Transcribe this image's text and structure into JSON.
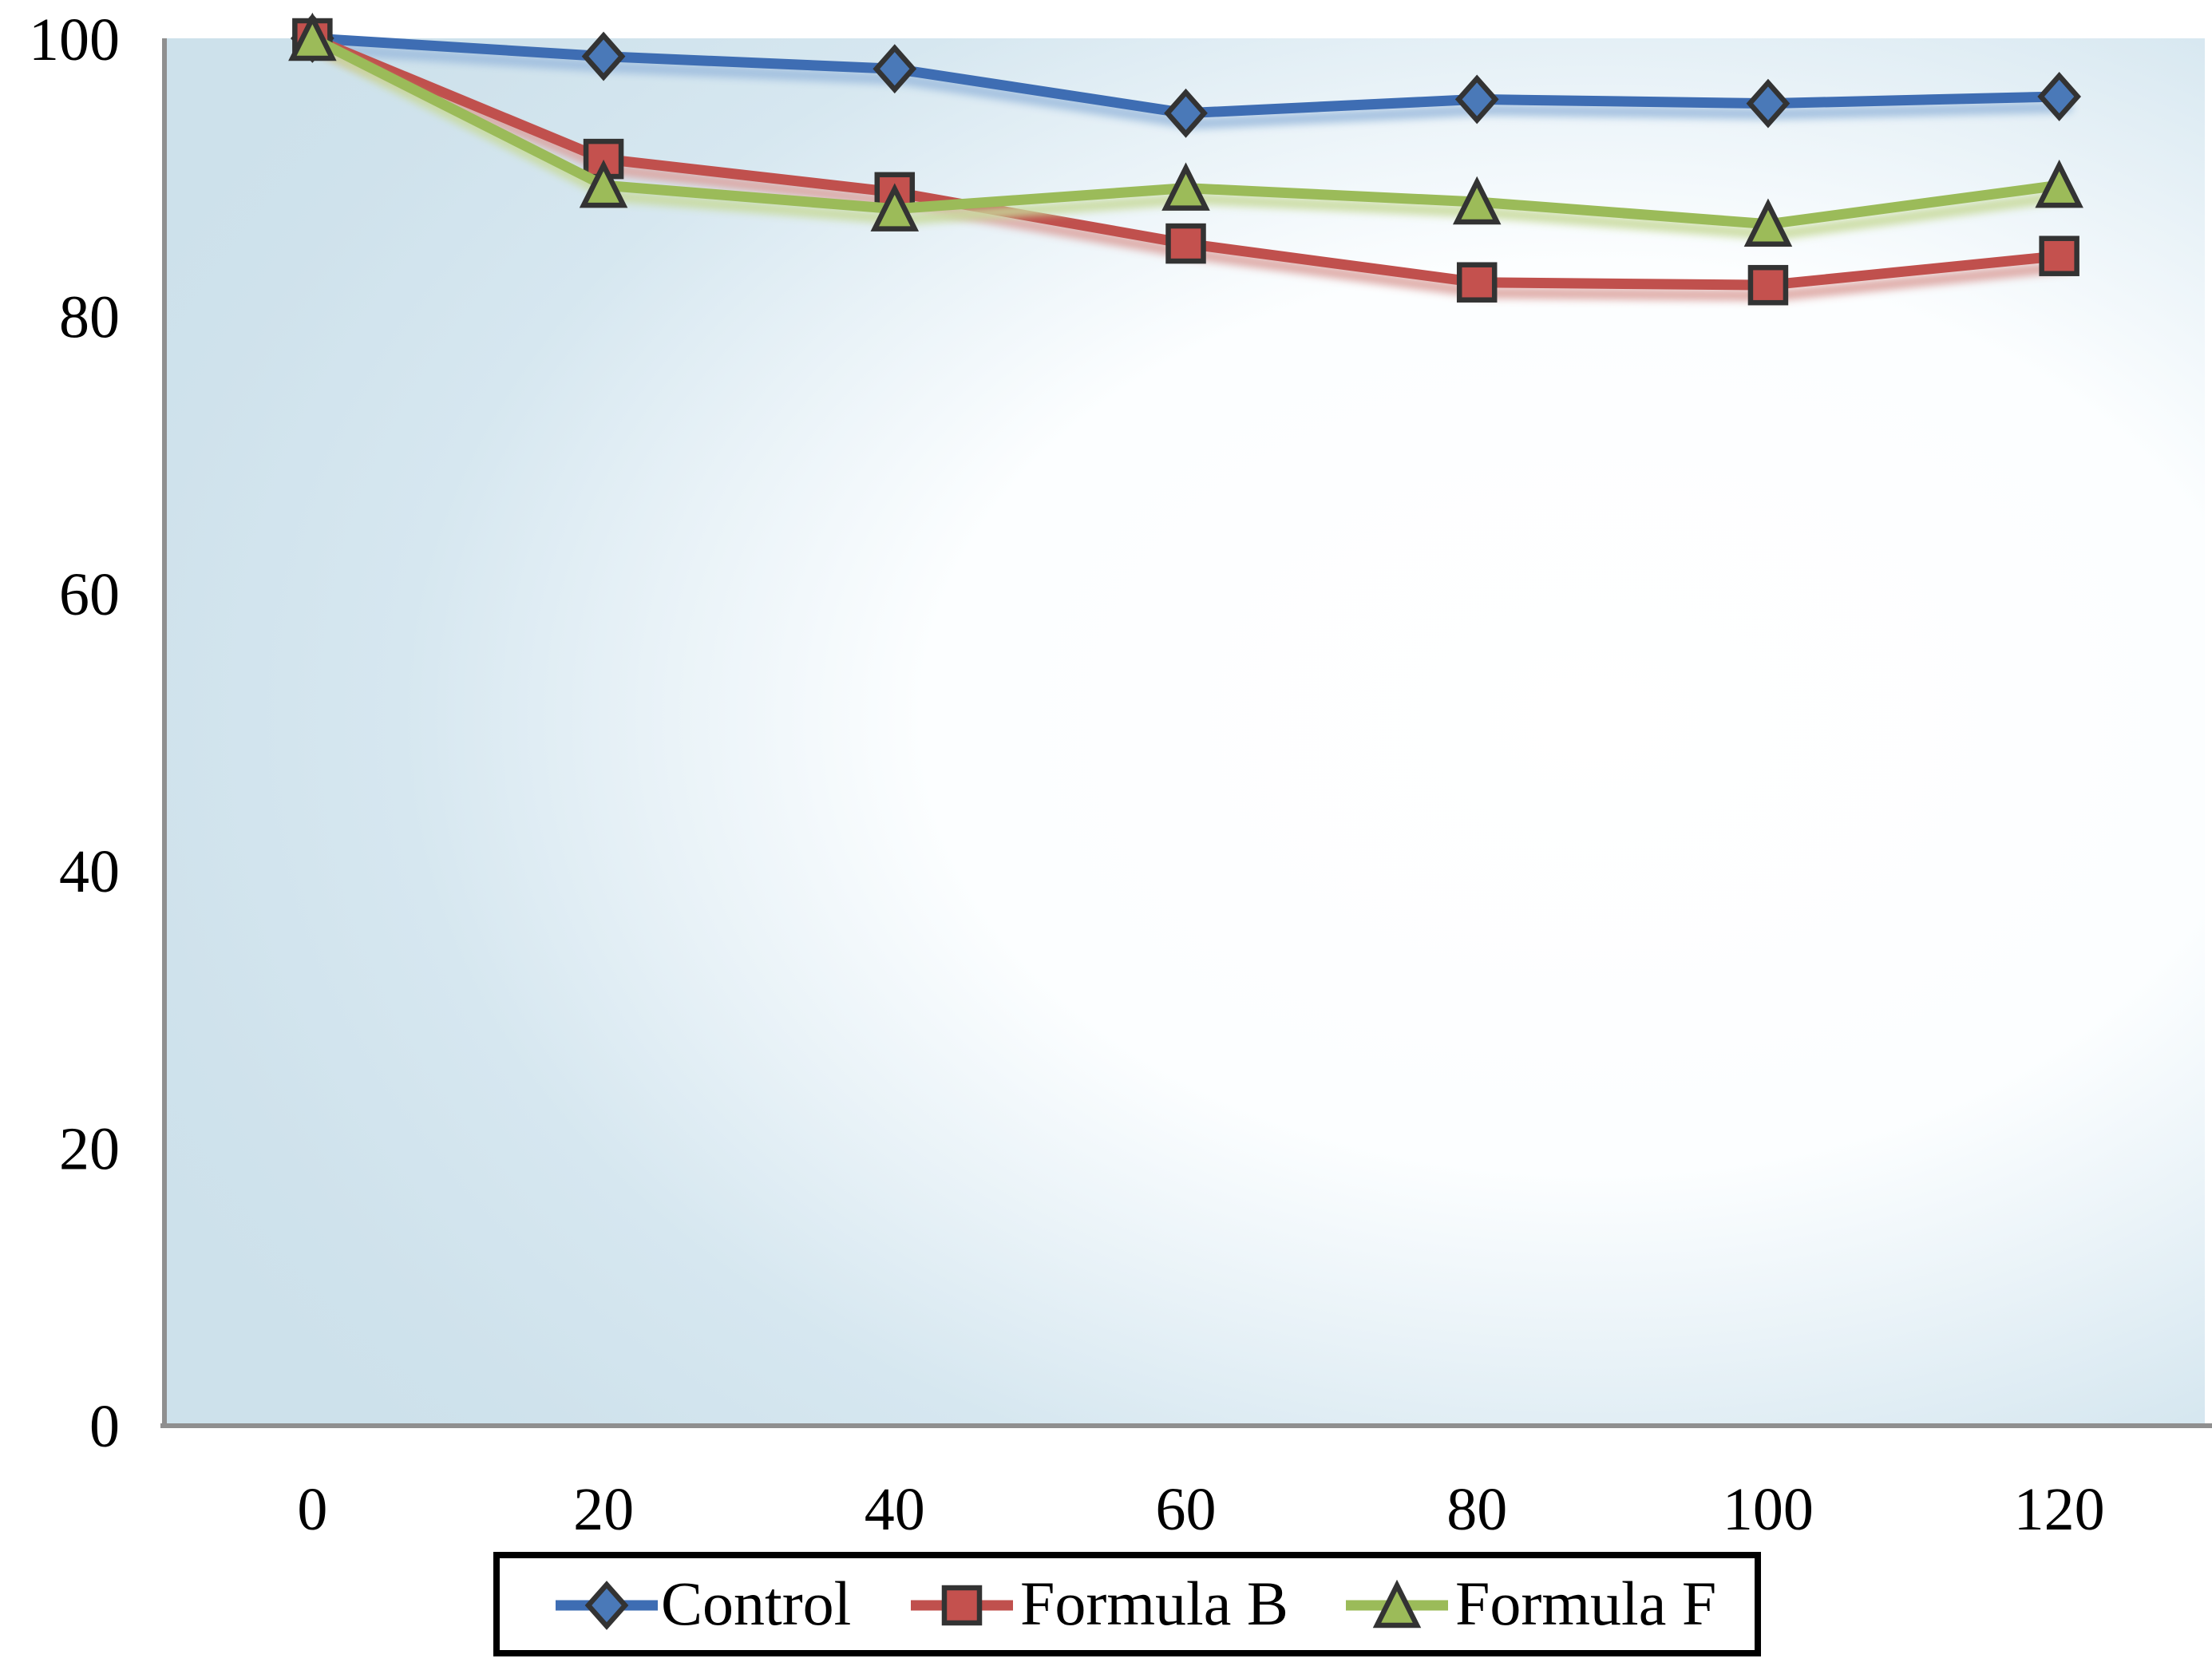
{
  "chart_data": {
    "type": "line",
    "x": [
      0,
      20,
      40,
      60,
      80,
      100,
      120
    ],
    "y_ticks": [
      0,
      20,
      40,
      60,
      80,
      100
    ],
    "ylim": [
      0,
      100
    ],
    "grid": false,
    "title": "",
    "xlabel": "",
    "ylabel": "",
    "legend_position": "bottom",
    "series": [
      {
        "name": "Control",
        "marker": "diamond",
        "color": "#3e6db3",
        "marker_fill": "#4a79b8",
        "shadow": "#9cbbdd",
        "values": [
          100,
          98.7,
          97.8,
          94.6,
          95.6,
          95.3,
          95.8
        ]
      },
      {
        "name": "Formula B",
        "marker": "square",
        "color": "#c0504d",
        "marker_fill": "#c4514e",
        "shadow": "#dba29e",
        "values": [
          100,
          91.3,
          88.9,
          85.2,
          82.4,
          82.2,
          84.3
        ]
      },
      {
        "name": "Formula F",
        "marker": "triangle",
        "color": "#9bbb59",
        "marker_fill": "#9cbb59",
        "shadow": "#c8da9b",
        "values": [
          100,
          89.4,
          87.7,
          89.2,
          88.2,
          86.6,
          89.4
        ]
      }
    ],
    "plot_bg": {
      "center": "#ffffff",
      "edge": "#cfe2ec"
    },
    "axis_color": "#8f8f8f",
    "text_color": "#000000",
    "marker_outline": "#333333",
    "legend": {
      "border_color": "#000000",
      "background": "#ffffff",
      "labels": [
        "Control",
        "Formula B",
        "Formula F"
      ]
    }
  }
}
